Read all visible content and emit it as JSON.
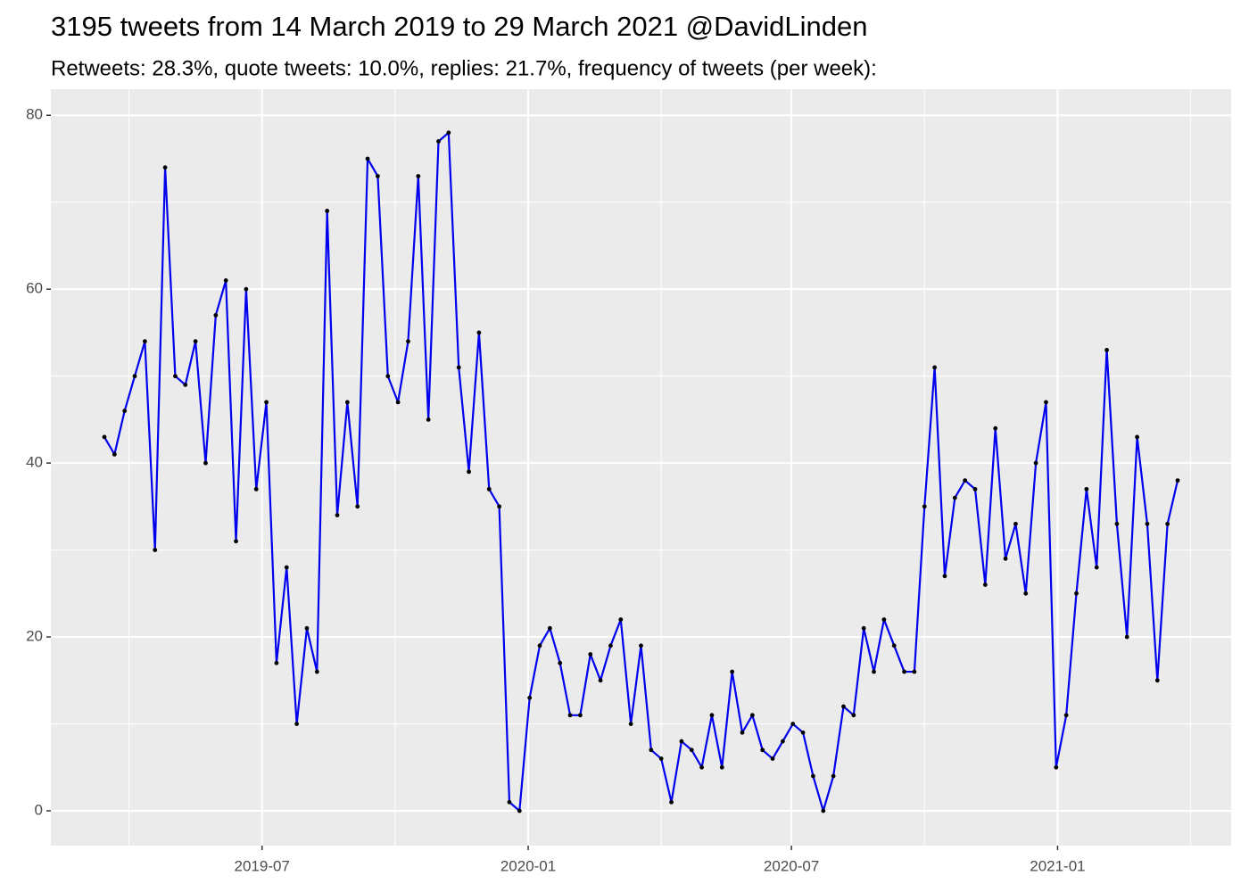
{
  "chart_data": {
    "type": "line",
    "title": "3195 tweets from 14 March 2019 to 29 March 2021 @DavidLinden",
    "subtitle": "Retweets: 28.3%, quote tweets: 10.0%, replies: 21.7%, frequency of tweets (per week):",
    "x": [
      "2019-03-14",
      "2019-03-21",
      "2019-03-28",
      "2019-04-04",
      "2019-04-11",
      "2019-04-18",
      "2019-04-25",
      "2019-05-02",
      "2019-05-09",
      "2019-05-16",
      "2019-05-23",
      "2019-05-30",
      "2019-06-06",
      "2019-06-13",
      "2019-06-20",
      "2019-06-27",
      "2019-07-04",
      "2019-07-11",
      "2019-07-18",
      "2019-07-25",
      "2019-08-01",
      "2019-08-08",
      "2019-08-15",
      "2019-08-22",
      "2019-08-29",
      "2019-09-05",
      "2019-09-12",
      "2019-09-19",
      "2019-09-26",
      "2019-10-03",
      "2019-10-10",
      "2019-10-17",
      "2019-10-24",
      "2019-10-31",
      "2019-11-07",
      "2019-11-14",
      "2019-11-21",
      "2019-11-28",
      "2019-12-05",
      "2019-12-12",
      "2019-12-19",
      "2019-12-26",
      "2020-01-02",
      "2020-01-09",
      "2020-01-16",
      "2020-01-23",
      "2020-01-30",
      "2020-02-06",
      "2020-02-13",
      "2020-02-20",
      "2020-02-27",
      "2020-03-05",
      "2020-03-12",
      "2020-03-19",
      "2020-03-26",
      "2020-04-02",
      "2020-04-09",
      "2020-04-16",
      "2020-04-23",
      "2020-04-30",
      "2020-05-07",
      "2020-05-14",
      "2020-05-21",
      "2020-05-28",
      "2020-06-04",
      "2020-06-11",
      "2020-06-18",
      "2020-06-25",
      "2020-07-02",
      "2020-07-09",
      "2020-07-16",
      "2020-07-23",
      "2020-07-30",
      "2020-08-06",
      "2020-08-13",
      "2020-08-20",
      "2020-08-27",
      "2020-09-03",
      "2020-09-10",
      "2020-09-17",
      "2020-09-24",
      "2020-10-01",
      "2020-10-08",
      "2020-10-15",
      "2020-10-22",
      "2020-10-29",
      "2020-11-05",
      "2020-11-12",
      "2020-11-19",
      "2020-11-26",
      "2020-12-03",
      "2020-12-10",
      "2020-12-17",
      "2020-12-24",
      "2020-12-31",
      "2021-01-07",
      "2021-01-14",
      "2021-01-21",
      "2021-01-28",
      "2021-02-04",
      "2021-02-11",
      "2021-02-18",
      "2021-02-25",
      "2021-03-04",
      "2021-03-11",
      "2021-03-18",
      "2021-03-25"
    ],
    "values": [
      43,
      41,
      46,
      50,
      54,
      30,
      74,
      50,
      49,
      54,
      40,
      57,
      61,
      31,
      60,
      37,
      47,
      17,
      28,
      10,
      21,
      16,
      69,
      34,
      47,
      35,
      75,
      73,
      50,
      47,
      54,
      73,
      45,
      77,
      78,
      51,
      39,
      55,
      37,
      35,
      1,
      0,
      13,
      19,
      21,
      17,
      11,
      11,
      18,
      15,
      19,
      22,
      10,
      19,
      7,
      6,
      1,
      8,
      7,
      5,
      11,
      5,
      16,
      9,
      11,
      7,
      6,
      8,
      10,
      9,
      4,
      0,
      4,
      12,
      11,
      21,
      16,
      22,
      19,
      16,
      16,
      35,
      51,
      27,
      36,
      38,
      37,
      26,
      44,
      29,
      33,
      25,
      40,
      47,
      5,
      11,
      25,
      37,
      28,
      53,
      33,
      20,
      43,
      33,
      15,
      33,
      38
    ],
    "color": "#0000ee",
    "marker_color": "#000000",
    "xlim": [
      "2019-02-05",
      "2021-05-01"
    ],
    "xticks": [
      "2019-07",
      "2020-01",
      "2020-07",
      "2021-01"
    ],
    "ylim": [
      -4,
      83
    ],
    "yticks": [
      0,
      20,
      40,
      60,
      80
    ],
    "grid": true
  }
}
